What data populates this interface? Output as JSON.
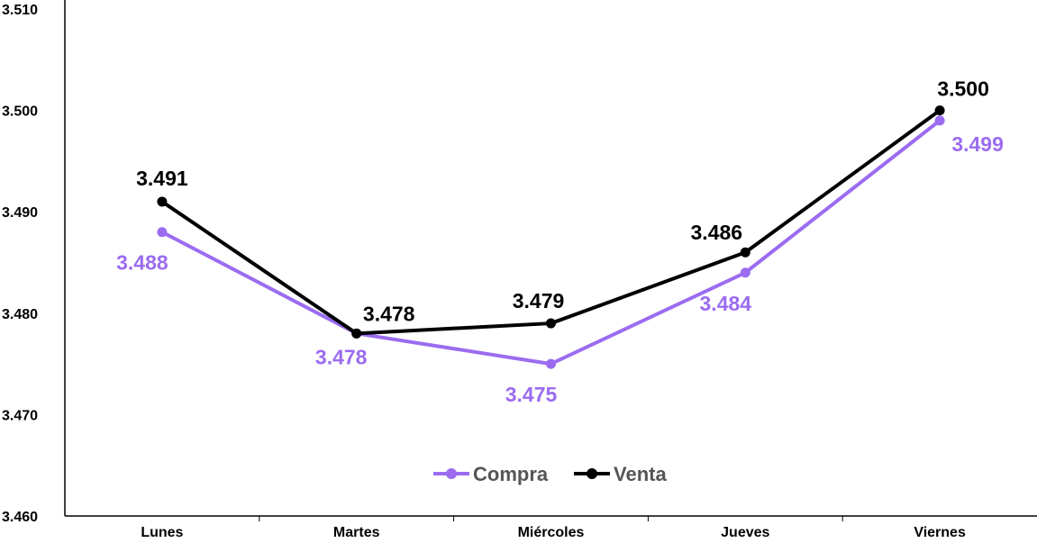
{
  "chart_data": {
    "type": "line",
    "title": "",
    "xlabel": "",
    "ylabel": "",
    "categories": [
      "Lunes",
      "Martes",
      "Miércoles",
      "Jueves",
      "Viernes"
    ],
    "ylim": [
      3.46,
      3.51
    ],
    "yticks": [
      "3.460",
      "3.470",
      "3.480",
      "3.490",
      "3.500",
      "3.510"
    ],
    "grid": false,
    "legend_position": "bottom-center",
    "series": [
      {
        "name": "Compra",
        "color": "#9b6cf0",
        "values": [
          3.488,
          3.478,
          3.475,
          3.484,
          3.499
        ],
        "labels": [
          "3.488",
          "3.478",
          "3.475",
          "3.484",
          "3.499"
        ]
      },
      {
        "name": "Venta",
        "color": "#000000",
        "values": [
          3.491,
          3.478,
          3.479,
          3.486,
          3.5
        ],
        "labels": [
          "3.491",
          "3.478",
          "3.479",
          "3.486",
          "3.500"
        ]
      }
    ]
  }
}
